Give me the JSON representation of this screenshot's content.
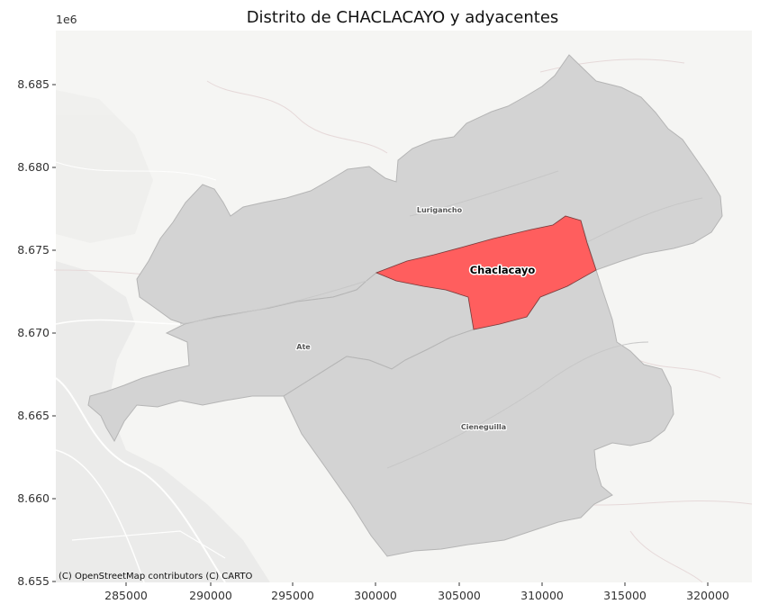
{
  "title": "Distrito de CHACLACAYO y adyacentes",
  "axis": {
    "y_offset": "1e6",
    "x_ticks": [
      "285000",
      "290000",
      "295000",
      "300000",
      "305000",
      "310000",
      "315000",
      "320000"
    ],
    "y_ticks": [
      "8.685",
      "8.680",
      "8.675",
      "8.670",
      "8.665",
      "8.660",
      "8.655"
    ]
  },
  "attribution": "(C) OpenStreetMap contributors (C) CARTO",
  "districts": {
    "lurigancho": "Lurigancho",
    "chaclacayo": "Chaclacayo",
    "ate": "Ate",
    "cieneguilla": "Cieneguilla"
  },
  "colors": {
    "highlight": "#ff5e5e",
    "neighbor": "#d3d3d3",
    "basemap": "#f2f2f0"
  }
}
